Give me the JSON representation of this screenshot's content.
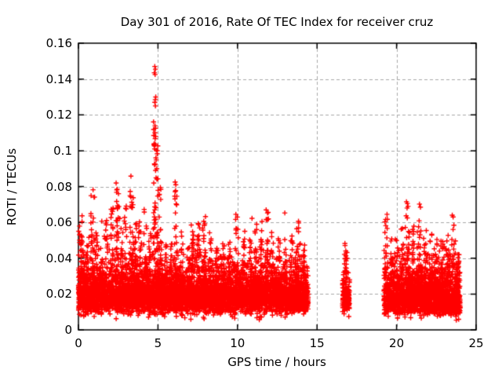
{
  "chart_data": {
    "type": "scatter",
    "title": "Day 301 of 2016, Rate Of TEC Index for receiver cruz",
    "xlabel": "GPS time / hours",
    "ylabel": "ROTI / TECUs",
    "xlim": [
      0,
      25
    ],
    "ylim": [
      0,
      0.16
    ],
    "xtick_values": [
      0,
      5,
      10,
      15,
      20,
      25
    ],
    "xtick_labels": [
      "0",
      "5",
      "10",
      "15",
      "20",
      "25"
    ],
    "ytick_values": [
      0,
      0.02,
      0.04,
      0.06,
      0.08,
      0.1,
      0.12,
      0.14,
      0.16
    ],
    "ytick_labels": [
      "0",
      "0.02",
      "0.04",
      "0.06",
      "0.08",
      "0.1",
      "0.12",
      "0.14",
      "0.16"
    ],
    "grid": {
      "show": true,
      "color": "#a8a8a8",
      "dash": [
        4,
        3
      ]
    },
    "background": "#ffffff",
    "border_color": "#000000",
    "legend": "none",
    "series": [
      {
        "name": "ROTI",
        "marker": {
          "shape": "plus",
          "color": "#ff0000",
          "size": 6.4,
          "line_width": 1.4
        },
        "data_gaps": [
          [
            14.45,
            16.6
          ],
          [
            17.05,
            19.2
          ]
        ],
        "density_bands": [
          {
            "x0": 0.0,
            "x1": 14.45,
            "n": 5200,
            "y_floor": 0.003,
            "y_core": 0.017,
            "sigma": 0.38
          },
          {
            "x0": 16.6,
            "x1": 17.05,
            "n": 170,
            "y_floor": 0.004,
            "y_core": 0.015,
            "sigma": 0.33
          },
          {
            "x0": 19.2,
            "x1": 24.0,
            "n": 1900,
            "y_floor": 0.003,
            "y_core": 0.016,
            "sigma": 0.42
          }
        ],
        "spike_base": 0.028,
        "spike_clusters": [
          [
            0.15,
            0.08,
            0.066,
            22
          ],
          [
            0.32,
            0.1,
            0.052,
            15
          ],
          [
            0.55,
            0.08,
            0.048,
            12
          ],
          [
            0.9,
            0.12,
            0.078,
            30
          ],
          [
            1.15,
            0.08,
            0.055,
            15
          ],
          [
            1.45,
            0.08,
            0.05,
            12
          ],
          [
            1.75,
            0.09,
            0.065,
            20
          ],
          [
            2.1,
            0.09,
            0.07,
            22
          ],
          [
            2.45,
            0.1,
            0.08,
            28
          ],
          [
            2.72,
            0.08,
            0.06,
            15
          ],
          [
            2.95,
            0.08,
            0.072,
            22
          ],
          [
            3.35,
            0.12,
            0.085,
            32
          ],
          [
            3.6,
            0.08,
            0.06,
            15
          ],
          [
            3.85,
            0.08,
            0.064,
            18
          ],
          [
            4.2,
            0.09,
            0.068,
            20
          ],
          [
            4.5,
            0.08,
            0.055,
            14
          ],
          [
            4.85,
            0.16,
            0.118,
            62
          ],
          [
            5.15,
            0.08,
            0.079,
            20
          ],
          [
            5.5,
            0.08,
            0.052,
            12
          ],
          [
            5.8,
            0.08,
            0.048,
            12
          ],
          [
            6.1,
            0.1,
            0.08,
            24
          ],
          [
            6.5,
            0.08,
            0.058,
            14
          ],
          [
            6.9,
            0.08,
            0.05,
            12
          ],
          [
            7.2,
            0.08,
            0.055,
            14
          ],
          [
            7.55,
            0.08,
            0.06,
            16
          ],
          [
            7.9,
            0.1,
            0.069,
            22
          ],
          [
            8.3,
            0.08,
            0.055,
            14
          ],
          [
            8.7,
            0.08,
            0.048,
            10
          ],
          [
            9.1,
            0.08,
            0.05,
            12
          ],
          [
            9.5,
            0.08,
            0.054,
            13
          ],
          [
            9.95,
            0.1,
            0.065,
            18
          ],
          [
            10.4,
            0.08,
            0.055,
            13
          ],
          [
            10.8,
            0.08,
            0.05,
            12
          ],
          [
            11.15,
            0.08,
            0.06,
            16
          ],
          [
            11.5,
            0.09,
            0.062,
            16
          ],
          [
            11.85,
            0.1,
            0.067,
            20
          ],
          [
            12.2,
            0.08,
            0.055,
            13
          ],
          [
            12.6,
            0.08,
            0.05,
            11
          ],
          [
            13.0,
            0.08,
            0.047,
            10
          ],
          [
            13.4,
            0.08,
            0.054,
            12
          ],
          [
            13.8,
            0.1,
            0.061,
            16
          ],
          [
            14.15,
            0.08,
            0.055,
            12
          ],
          [
            16.82,
            0.1,
            0.045,
            14
          ],
          [
            16.8,
            0.05,
            0.057,
            7
          ],
          [
            19.35,
            0.1,
            0.063,
            18
          ],
          [
            19.7,
            0.08,
            0.054,
            13
          ],
          [
            20.05,
            0.08,
            0.05,
            12
          ],
          [
            20.35,
            0.08,
            0.058,
            15
          ],
          [
            20.7,
            0.1,
            0.066,
            20
          ],
          [
            21.05,
            0.08,
            0.058,
            14
          ],
          [
            21.45,
            0.09,
            0.066,
            16
          ],
          [
            21.8,
            0.08,
            0.057,
            14
          ],
          [
            22.15,
            0.08,
            0.055,
            13
          ],
          [
            22.5,
            0.08,
            0.052,
            12
          ],
          [
            22.85,
            0.08,
            0.05,
            11
          ],
          [
            23.2,
            0.08,
            0.054,
            12
          ],
          [
            23.55,
            0.09,
            0.06,
            13
          ],
          [
            23.85,
            0.07,
            0.05,
            10
          ]
        ],
        "notable_points": [
          [
            4.8,
            0.147
          ],
          [
            4.84,
            0.1455
          ],
          [
            4.77,
            0.1435
          ],
          [
            4.82,
            0.1425
          ],
          [
            4.86,
            0.13
          ],
          [
            4.83,
            0.1285
          ],
          [
            4.8,
            0.127
          ],
          [
            4.84,
            0.125
          ],
          [
            4.81,
            0.11
          ],
          [
            4.86,
            0.108
          ],
          [
            4.84,
            0.1035
          ],
          [
            4.79,
            0.101
          ],
          [
            4.87,
            0.096
          ],
          [
            4.82,
            0.0925
          ],
          [
            4.85,
            0.089
          ],
          [
            2.37,
            0.082
          ],
          [
            3.3,
            0.0858
          ],
          [
            6.08,
            0.0825
          ],
          [
            6.12,
            0.081
          ],
          [
            0.92,
            0.0782
          ],
          [
            5.15,
            0.0795
          ],
          [
            20.62,
            0.0715
          ],
          [
            20.68,
            0.0705
          ],
          [
            20.72,
            0.069
          ],
          [
            21.44,
            0.0702
          ],
          [
            20.66,
            0.068
          ],
          [
            21.5,
            0.0685
          ],
          [
            23.5,
            0.064
          ],
          [
            19.4,
            0.0645
          ]
        ]
      }
    ]
  }
}
